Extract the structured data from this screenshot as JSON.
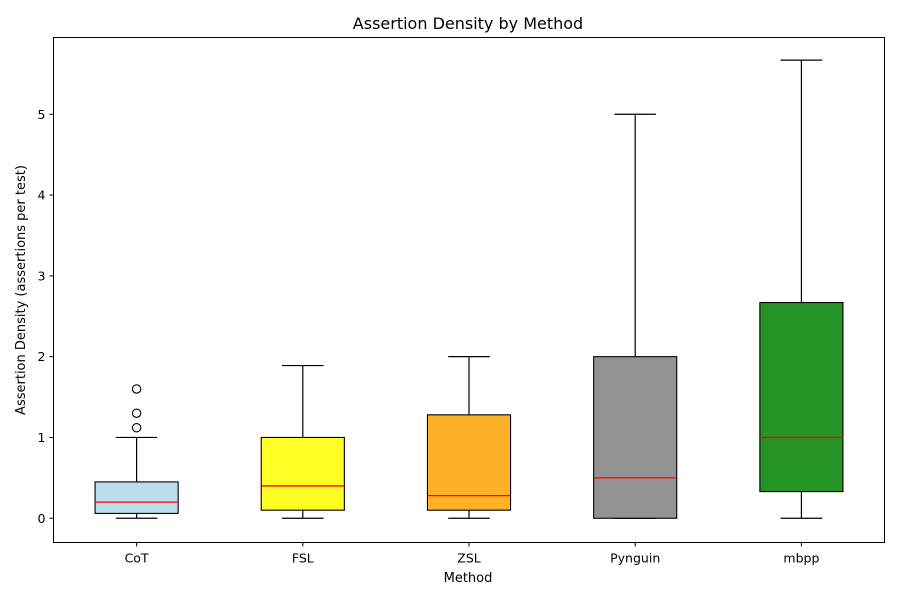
{
  "chart_data": {
    "type": "box",
    "title": "Assertion Density by Method",
    "xlabel": "Method",
    "ylabel": "Assertion Density (assertions per test)",
    "ylim": [
      -0.3,
      5.95
    ],
    "yticks": [
      0,
      1,
      2,
      3,
      4,
      5
    ],
    "grid": false,
    "legend": "none",
    "median_color": "#ff0000",
    "categories": [
      "CoT",
      "FSL",
      "ZSL",
      "Pynguin",
      "mbpp"
    ],
    "boxes": [
      {
        "label": "CoT",
        "whisker_low": 0,
        "q1": 0.06,
        "median": 0.2,
        "q3": 0.45,
        "whisker_high": 1.0,
        "outliers": [
          1.12,
          1.3,
          1.6
        ],
        "color": "#add8e6"
      },
      {
        "label": "FSL",
        "whisker_low": 0,
        "q1": 0.1,
        "median": 0.4,
        "q3": 1.0,
        "whisker_high": 1.89,
        "outliers": [],
        "color": "#ffff00"
      },
      {
        "label": "ZSL",
        "whisker_low": 0,
        "q1": 0.1,
        "median": 0.28,
        "q3": 1.28,
        "whisker_high": 2.0,
        "outliers": [],
        "color": "#ffa500"
      },
      {
        "label": "Pynguin",
        "whisker_low": 0,
        "q1": 0,
        "median": 0.5,
        "q3": 2.0,
        "whisker_high": 5.0,
        "outliers": [],
        "color": "#808080"
      },
      {
        "label": "mbpp",
        "whisker_low": 0,
        "q1": 0.33,
        "median": 1.0,
        "q3": 2.67,
        "whisker_high": 5.67,
        "outliers": [],
        "color": "#008000"
      }
    ]
  }
}
